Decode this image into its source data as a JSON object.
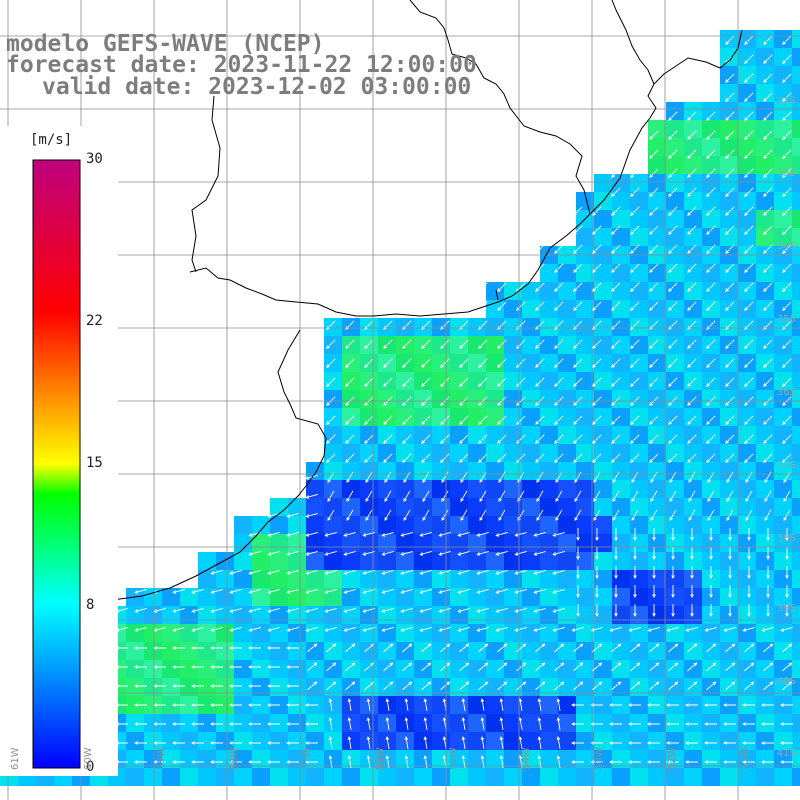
{
  "title": {
    "line1": "modelo GEFS-WAVE (NCEP)",
    "line2": "forecast date: 2023-11-22 12:00:00",
    "line3": "valid date: 2023-12-02 03:00:00"
  },
  "colorbar": {
    "unit": "[m/s]",
    "min": 0,
    "max": 30,
    "ticks": [
      {
        "value": 30,
        "label": "30"
      },
      {
        "value": 22,
        "label": "22"
      },
      {
        "value": 15,
        "label": "15"
      },
      {
        "value": 8,
        "label": "8"
      },
      {
        "value": 0,
        "label": "0"
      }
    ],
    "stops": [
      "#0000ff",
      "#00ffff",
      "#00ff00",
      "#ffff00",
      "#ff0000",
      "#bf007f"
    ]
  },
  "lat_labels": [
    "32S",
    "33S",
    "34S",
    "35S",
    "36S",
    "37S",
    "38S",
    "39S",
    "40S",
    "41S"
  ],
  "lon_labels": [
    "61W",
    "60W",
    "59W",
    "58W",
    "57W",
    "56W",
    "55W",
    "54W",
    "53W",
    "52W",
    "51W"
  ],
  "colors": {
    "land": "#ffffff",
    "grid": "#8c8c8c",
    "coast": "#000000",
    "arrow": "#ffffff"
  }
}
